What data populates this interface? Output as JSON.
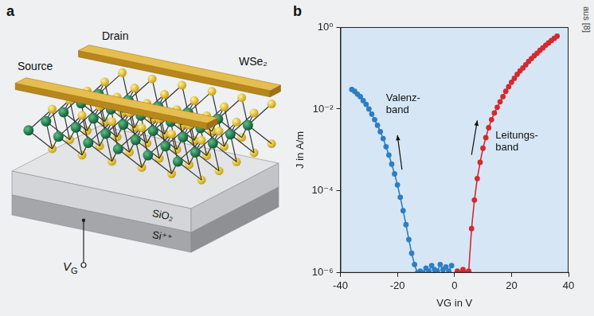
{
  "source_note": "aus [8]",
  "diagram": {
    "panel": "a",
    "labels": {
      "source": "Source",
      "drain": "Drain",
      "channel": "WSe₂",
      "oxide": "SiO₂",
      "substrate": "Si⁺⁺",
      "gate": {
        "symbol": "V",
        "subscript": "G"
      }
    }
  },
  "chart_data": {
    "panel": "b",
    "type": "line",
    "x_label": "VG in V",
    "y_label": "J in A/m",
    "xlim": [
      -40,
      40
    ],
    "xticks": [
      -40,
      -20,
      0,
      20,
      40
    ],
    "ylim": [
      1e-06,
      1
    ],
    "yticks": [
      {
        "value": 1e-06,
        "label": "10⁻⁶"
      },
      {
        "value": 0.0001,
        "label": "10⁻⁴"
      },
      {
        "value": 0.01,
        "label": "10⁻²"
      },
      {
        "value": 1,
        "label": "10⁰"
      }
    ],
    "log": "y",
    "grid": false,
    "marker": "circle",
    "line_style": "solid",
    "series": [
      {
        "color": "#2e7ec4",
        "x": [
          -36,
          -35,
          -34,
          -33,
          -32,
          -31,
          -30,
          -29,
          -28,
          -27,
          -26,
          -25,
          -24,
          -23,
          -22,
          -21,
          -20,
          -19,
          -18,
          -17,
          -16,
          -15,
          -14,
          -13,
          -12,
          -11,
          -10,
          -9,
          -8,
          -7,
          -6,
          -5,
          -4,
          -3,
          -2,
          -1
        ],
        "values": [
          0.03,
          0.027,
          0.023,
          0.02,
          0.016,
          0.013,
          0.01,
          0.0075,
          0.0055,
          0.004,
          0.0028,
          0.0019,
          0.0012,
          0.00075,
          0.00045,
          0.00026,
          0.00014,
          7e-05,
          3.3e-05,
          1.5e-05,
          6.5e-06,
          3e-06,
          1.6e-06,
          1e-06,
          1.1e-06,
          1e-06,
          1.3e-06,
          1.1e-06,
          1.5e-06,
          1.2e-06,
          1.1e-06,
          1.6e-06,
          1.2e-06,
          1.4e-06,
          1.1e-06,
          1.5e-06
        ]
      },
      {
        "color": "#d42a2f",
        "x": [
          1,
          2,
          3,
          4,
          5,
          6,
          7,
          8,
          9,
          10,
          11,
          12,
          13,
          14,
          15,
          16,
          17,
          18,
          19,
          20,
          21,
          22,
          23,
          24,
          25,
          26,
          27,
          28,
          29,
          30,
          31,
          32,
          33,
          34,
          35,
          36
        ],
        "values": [
          1.1e-06,
          1e-06,
          1.2e-06,
          1e-06,
          1.1e-06,
          1.2e-05,
          6e-05,
          0.0002,
          0.0005,
          0.0011,
          0.002,
          0.0035,
          0.0055,
          0.008,
          0.011,
          0.015,
          0.02,
          0.027,
          0.035,
          0.045,
          0.056,
          0.07,
          0.085,
          0.1,
          0.12,
          0.145,
          0.17,
          0.2,
          0.23,
          0.27,
          0.31,
          0.36,
          0.41,
          0.47,
          0.53,
          0.6
        ]
      }
    ],
    "annotations": [
      {
        "text": [
          "Valenz-",
          "band"
        ]
      },
      {
        "text": [
          "Leitungs-",
          "band"
        ]
      }
    ]
  }
}
